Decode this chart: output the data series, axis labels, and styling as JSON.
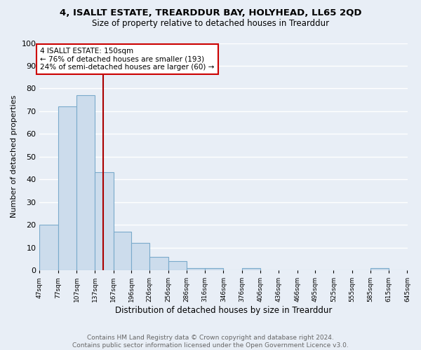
{
  "title": "4, ISALLT ESTATE, TREARDDUR BAY, HOLYHEAD, LL65 2QD",
  "subtitle": "Size of property relative to detached houses in Trearddur",
  "xlabel": "Distribution of detached houses by size in Trearddur",
  "ylabel": "Number of detached properties",
  "bar_edges": [
    47,
    77,
    107,
    137,
    167,
    196,
    226,
    256,
    286,
    316,
    346,
    376,
    406,
    436,
    466,
    495,
    525,
    555,
    585,
    615,
    645
  ],
  "bar_heights": [
    20,
    72,
    77,
    43,
    17,
    12,
    6,
    4,
    1,
    1,
    0,
    1,
    0,
    0,
    0,
    0,
    0,
    0,
    1,
    0,
    0
  ],
  "bar_color": "#ccdcec",
  "bar_edge_color": "#7aaacb",
  "vline_x": 150,
  "vline_color": "#aa0000",
  "annotation_text": "4 ISALLT ESTATE: 150sqm\n← 76% of detached houses are smaller (193)\n24% of semi-detached houses are larger (60) →",
  "annotation_box_color": "#ffffff",
  "annotation_box_edge": "#cc0000",
  "ylim": [
    0,
    100
  ],
  "yticks": [
    0,
    10,
    20,
    30,
    40,
    50,
    60,
    70,
    80,
    90,
    100
  ],
  "tick_labels": [
    "47sqm",
    "77sqm",
    "107sqm",
    "137sqm",
    "167sqm",
    "196sqm",
    "226sqm",
    "256sqm",
    "286sqm",
    "316sqm",
    "346sqm",
    "376sqm",
    "406sqm",
    "436sqm",
    "466sqm",
    "495sqm",
    "525sqm",
    "555sqm",
    "585sqm",
    "615sqm",
    "645sqm"
  ],
  "footer_text": "Contains HM Land Registry data © Crown copyright and database right 2024.\nContains public sector information licensed under the Open Government Licence v3.0.",
  "bg_color": "#e8eef6",
  "grid_color": "#ffffff",
  "title_fontsize": 9.5,
  "subtitle_fontsize": 8.5,
  "ylabel_fontsize": 8,
  "xlabel_fontsize": 8.5,
  "footer_fontsize": 6.5,
  "footer_color": "#666666"
}
